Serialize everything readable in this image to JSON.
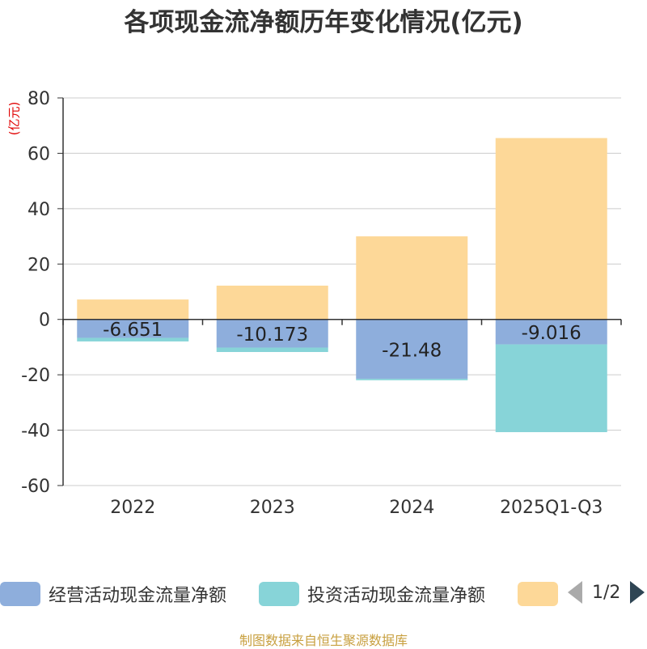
{
  "title": "各项现金流净额历年变化情况(亿元)",
  "unit_label": "(亿元)",
  "source": "制图数据来自恒生聚源数据库",
  "chart_data": {
    "type": "bar",
    "stacked": true,
    "categories": [
      "2022",
      "2023",
      "2024",
      "2025Q1-Q3"
    ],
    "ylim": [
      -60,
      80
    ],
    "yticks": [
      80,
      60,
      40,
      20,
      0,
      -20,
      -40,
      -60
    ],
    "series": [
      {
        "name": "经营活动现金流量净额",
        "color": "#8eaedc",
        "values": [
          -6.651,
          -10.173,
          -21.48,
          -9.016
        ],
        "labels": [
          "-6.651",
          "-10.173",
          "-21.48",
          "-9.016"
        ]
      },
      {
        "name": "投资活动现金流量净额",
        "color": "#87d4d8",
        "values": [
          -1.3,
          -1.6,
          -0.5,
          -31.7
        ]
      },
      {
        "name": "",
        "color": "#fdd898",
        "values": [
          7.2,
          12.2,
          30.0,
          65.5
        ]
      }
    ]
  },
  "legend": {
    "items": [
      {
        "label": "经营活动现金流量净额",
        "color": "#8eaedc"
      },
      {
        "label": "投资活动现金流量净额",
        "color": "#87d4d8"
      },
      {
        "label": "",
        "color": "#fdd898"
      }
    ],
    "page": "1/2"
  }
}
